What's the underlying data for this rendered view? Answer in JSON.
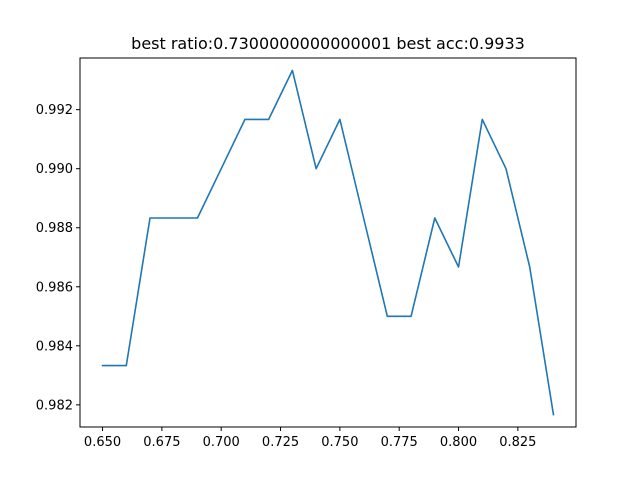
{
  "chart_data": {
    "type": "line",
    "title": "best ratio:0.7300000000000001 best acc:0.9933",
    "xlabel": "",
    "ylabel": "",
    "xlim": [
      0.6405,
      0.8495
    ],
    "ylim": [
      0.98125,
      0.99375
    ],
    "grid": false,
    "x_ticks": [
      0.65,
      0.675,
      0.7,
      0.725,
      0.75,
      0.775,
      0.8,
      0.825
    ],
    "x_tick_labels": [
      "0.650",
      "0.675",
      "0.700",
      "0.725",
      "0.750",
      "0.775",
      "0.800",
      "0.825"
    ],
    "y_ticks": [
      0.982,
      0.984,
      0.986,
      0.988,
      0.99,
      0.992
    ],
    "y_tick_labels": [
      "0.982",
      "0.984",
      "0.986",
      "0.988",
      "0.990",
      "0.992"
    ],
    "color": "#1f77b4",
    "x": [
      0.65,
      0.66,
      0.67,
      0.68,
      0.69,
      0.7,
      0.71,
      0.72,
      0.73,
      0.74,
      0.75,
      0.76,
      0.77,
      0.78,
      0.79,
      0.8,
      0.81,
      0.82,
      0.83,
      0.84
    ],
    "y": [
      0.98333,
      0.98333,
      0.98833,
      0.98833,
      0.98833,
      0.99,
      0.99167,
      0.99167,
      0.99333,
      0.99,
      0.99167,
      0.98833,
      0.985,
      0.985,
      0.98833,
      0.98667,
      0.99167,
      0.99,
      0.98667,
      0.98167
    ]
  }
}
